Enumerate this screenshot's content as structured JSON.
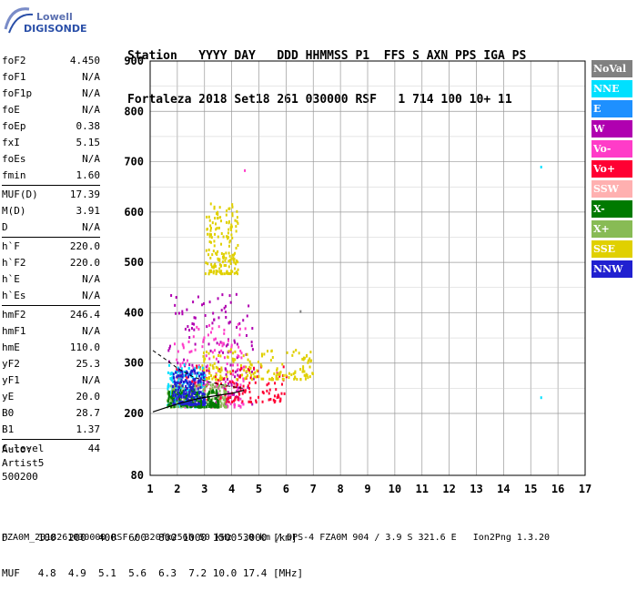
{
  "logo": {
    "line1": "Lowell",
    "line2": "DIGISONDE"
  },
  "header": {
    "labels": "Station   YYYY DAY   DDD HHMMSS P1  FFS S AXN PPS IGA PS",
    "values": "Fortaleza 2018 Set18 261 030000 RSF   1 714 100 10+ 11"
  },
  "params": [
    {
      "name": "foF2",
      "value": "4.450"
    },
    {
      "name": "foF1",
      "value": "N/A"
    },
    {
      "name": "foF1p",
      "value": "N/A"
    },
    {
      "name": "foE",
      "value": "N/A"
    },
    {
      "name": "foEp",
      "value": "0.38"
    },
    {
      "name": "fxI",
      "value": "5.15"
    },
    {
      "name": "foEs",
      "value": "N/A"
    },
    {
      "name": "fmin",
      "value": "1.60"
    },
    {
      "name": "MUF(D)",
      "value": "17.39",
      "sep": true
    },
    {
      "name": "M(D)",
      "value": "3.91"
    },
    {
      "name": "D",
      "value": "N/A"
    },
    {
      "name": "h`F",
      "value": "220.0",
      "sep": true
    },
    {
      "name": "h`F2",
      "value": "220.0"
    },
    {
      "name": "h`E",
      "value": "N/A"
    },
    {
      "name": "h`Es",
      "value": "N/A"
    },
    {
      "name": "hmF2",
      "value": "246.4",
      "sep": true
    },
    {
      "name": "hmF1",
      "value": "N/A"
    },
    {
      "name": "hmE",
      "value": "110.0"
    },
    {
      "name": "yF2",
      "value": "25.3"
    },
    {
      "name": "yF1",
      "value": "N/A"
    },
    {
      "name": "yE",
      "value": "20.0"
    },
    {
      "name": "B0",
      "value": "28.7"
    },
    {
      "name": "B1",
      "value": "1.37"
    },
    {
      "name": "C-level",
      "value": "44",
      "sep": true
    }
  ],
  "auto": {
    "line1": "Auto:",
    "line2": "Artist5",
    "line3": "500200"
  },
  "legend": [
    {
      "label": "NoVal",
      "color": "#808080"
    },
    {
      "label": "NNE",
      "color": "#00e0ff"
    },
    {
      "label": "E",
      "color": "#1e90ff"
    },
    {
      "label": "W",
      "color": "#b000b0"
    },
    {
      "label": "Vo-",
      "color": "#ff3cc8"
    },
    {
      "label": "Vo+",
      "color": "#ff0033"
    },
    {
      "label": "SSW",
      "color": "#ffb0b0"
    },
    {
      "label": "X-",
      "color": "#007a00"
    },
    {
      "label": "X+",
      "color": "#88bb55"
    },
    {
      "label": "SSE",
      "color": "#e0d000"
    },
    {
      "label": "NNW",
      "color": "#2020d0"
    }
  ],
  "footer": {
    "row1": "D     100  200  400  600  800 1000 1500 3000 [km]",
    "row2": "MUF   4.8  4.9  5.1  5.6  6.3  7.2 10.0 17.4 [MHz]",
    "line": "FZA0M_2018261030000.RSF / 320fx256h 50 kHz 5.0 km / DPS-4 FZA0M 904 / 3.9 S 321.6 E   Ion2Png 1.3.20"
  },
  "chart_data": {
    "type": "scatter",
    "x_ticks": [
      "1",
      "2",
      "3",
      "4",
      "5",
      "6",
      "7",
      "8",
      "9",
      "10",
      "11",
      "12",
      "13",
      "14",
      "15",
      "16",
      "17"
    ],
    "y_ticks": [
      "80",
      "200",
      "300",
      "400",
      "500",
      "600",
      "700",
      "800",
      "900"
    ],
    "xlim": [
      1,
      17
    ],
    "ylim": [
      80,
      900
    ],
    "grid": true,
    "legend_position": "right",
    "clusters": [
      {
        "mode": "W",
        "freq_range": [
          1.6,
          4.8
        ],
        "height_range": [
          220,
          440
        ]
      },
      {
        "mode": "Vo-",
        "freq_range": [
          1.8,
          4.5
        ],
        "height_range": [
          215,
          380
        ]
      },
      {
        "mode": "Vo+",
        "freq_range": [
          1.8,
          6.0
        ],
        "height_range": [
          225,
          300
        ]
      },
      {
        "mode": "SSE",
        "freq_range": [
          2.8,
          7.0
        ],
        "height_range": [
          270,
          330
        ]
      },
      {
        "mode": "SSE",
        "freq_range": [
          3.0,
          4.2
        ],
        "height_range": [
          480,
          620
        ]
      },
      {
        "mode": "NNE",
        "freq_range": [
          1.6,
          3.0
        ],
        "height_range": [
          215,
          300
        ]
      },
      {
        "mode": "X+",
        "freq_range": [
          1.6,
          3.8
        ],
        "height_range": [
          215,
          260
        ]
      },
      {
        "mode": "X-",
        "freq_range": [
          1.6,
          3.5
        ],
        "height_range": [
          215,
          250
        ]
      },
      {
        "mode": "NNW",
        "freq_range": [
          1.8,
          3.0
        ],
        "height_range": [
          220,
          290
        ]
      }
    ],
    "isolated_points": [
      {
        "mode": "NNE",
        "x": 15.35,
        "y": 692
      },
      {
        "mode": "NNE",
        "x": 15.35,
        "y": 234
      },
      {
        "mode": "Vo-",
        "x": 4.45,
        "y": 685
      },
      {
        "mode": "NoVal",
        "x": 6.5,
        "y": 405
      }
    ],
    "trace_dashed": [
      [
        1.1,
        325
      ],
      [
        1.5,
        310
      ],
      [
        2.0,
        290
      ],
      [
        2.6,
        272
      ],
      [
        3.2,
        262
      ],
      [
        3.8,
        255
      ],
      [
        4.4,
        250
      ]
    ],
    "trace_solid": [
      [
        1.1,
        203
      ],
      [
        1.6,
        212
      ],
      [
        2.2,
        222
      ],
      [
        2.8,
        230
      ],
      [
        3.4,
        235
      ],
      [
        4.0,
        240
      ],
      [
        4.45,
        246
      ]
    ]
  }
}
